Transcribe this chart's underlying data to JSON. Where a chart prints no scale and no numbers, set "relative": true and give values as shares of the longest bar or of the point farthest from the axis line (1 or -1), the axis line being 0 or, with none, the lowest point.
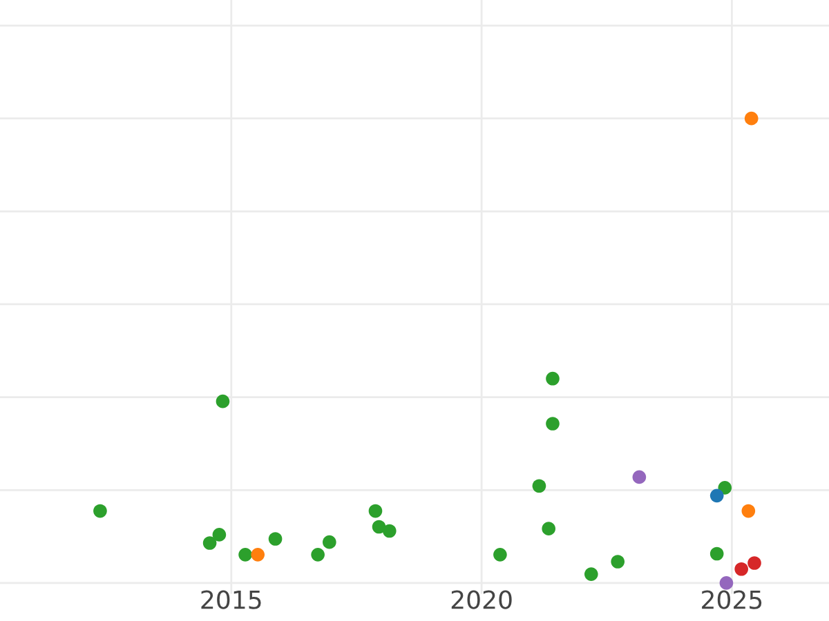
{
  "chart_data": {
    "type": "scatter",
    "relative": true,
    "grid": true,
    "marker": "circle",
    "legend": false,
    "xlim": [
      2010.38,
      2026.94
    ],
    "xticks": [
      2015,
      2020,
      2025
    ],
    "tick_labels": "x",
    "series": [
      {
        "color": "#2ca02c",
        "x": [
          2012.38,
          2014.57,
          2014.76,
          2014.83,
          2015.28,
          2015.88,
          2016.73,
          2016.96,
          2017.88,
          2017.95,
          2018.16,
          2020.37,
          2021.15,
          2021.34,
          2021.42,
          2021.42,
          2022.19,
          2022.72,
          2024.7,
          2024.86
        ],
        "values": [
          0.155,
          0.086,
          0.104,
          0.391,
          0.061,
          0.095,
          0.061,
          0.088,
          0.155,
          0.121,
          0.112,
          0.061,
          0.209,
          0.117,
          0.44,
          0.343,
          0.019,
          0.046,
          0.063,
          0.205
        ]
      },
      {
        "color": "#ff7f0e",
        "x": [
          2015.53,
          2025.33,
          2025.39
        ],
        "values": [
          0.061,
          0.155,
          1.0
        ]
      },
      {
        "color": "#1f77b4",
        "x": [
          2024.7
        ],
        "values": [
          0.188
        ]
      },
      {
        "color": "#d62728",
        "x": [
          2025.19,
          2025.45
        ],
        "values": [
          0.03,
          0.043
        ]
      },
      {
        "color": "#9467bd",
        "x": [
          2023.15,
          2024.89
        ],
        "values": [
          0.228,
          0.0
        ]
      }
    ]
  }
}
